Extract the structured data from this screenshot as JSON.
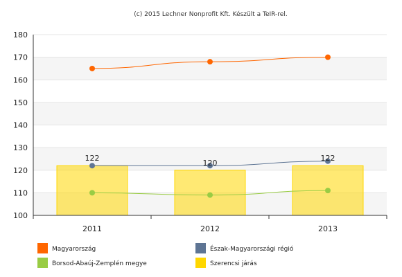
{
  "credit": "(c) 2015 Lechner Nonprofit Kft. Készült a TeIR-rel.",
  "chart_data": {
    "type": "bar+line",
    "categories": [
      "2011",
      "2012",
      "2013"
    ],
    "ylim": [
      100,
      180
    ],
    "yticks": [
      100,
      110,
      120,
      130,
      140,
      150,
      160,
      170,
      180
    ],
    "grid": true,
    "legend_position": "bottom",
    "series": [
      {
        "name": "Magyarország",
        "type": "line",
        "color": "#ff6600",
        "values": [
          165,
          168,
          170
        ]
      },
      {
        "name": "Észak-Magyarországi régió",
        "type": "line",
        "color": "#5e7594",
        "values": [
          122,
          122,
          124
        ]
      },
      {
        "name": "Borsod-Abaúj-Zemplén megye",
        "type": "line",
        "color": "#99cc44",
        "values": [
          110,
          109,
          111
        ]
      },
      {
        "name": "Szerencsi járás",
        "type": "bar",
        "color": "#ffd700",
        "values": [
          122,
          120,
          122
        ],
        "data_labels": [
          "122",
          "120",
          "122"
        ]
      }
    ]
  }
}
